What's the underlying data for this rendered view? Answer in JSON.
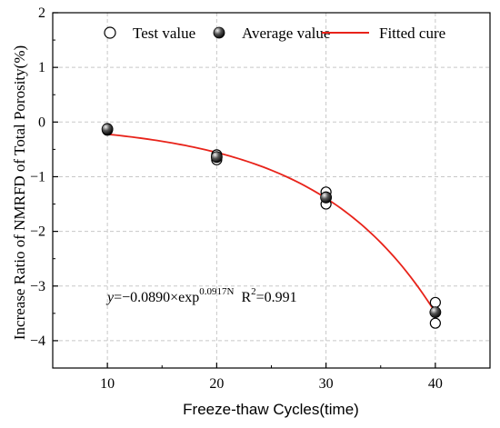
{
  "chart_data": {
    "type": "scatter",
    "xlabel": "Freeze-thaw Cycles(time)",
    "ylabel": "Increase Ratio of NMRFD of Total Porosity(%)",
    "xlim": [
      5,
      45
    ],
    "ylim": [
      -4.5,
      2
    ],
    "x_ticks": [
      "10",
      "20",
      "30",
      "40"
    ],
    "y_ticks": [
      "2",
      "1",
      "0",
      "−1",
      "−2",
      "−3",
      "−4"
    ],
    "grid": "dashed",
    "legend_position": "top",
    "series": [
      {
        "name": "Test value",
        "marker": "open-circle",
        "points": [
          {
            "x": 10,
            "y": -0.12
          },
          {
            "x": 10,
            "y": -0.15
          },
          {
            "x": 20,
            "y": -0.6
          },
          {
            "x": 20,
            "y": -0.65
          },
          {
            "x": 20,
            "y": -0.69
          },
          {
            "x": 30,
            "y": -1.28
          },
          {
            "x": 30,
            "y": -1.37
          },
          {
            "x": 30,
            "y": -1.5
          },
          {
            "x": 40,
            "y": -3.3
          },
          {
            "x": 40,
            "y": -3.48
          },
          {
            "x": 40,
            "y": -3.68
          }
        ]
      },
      {
        "name": "Average value",
        "marker": "filled-sphere",
        "points": [
          {
            "x": 10,
            "y": -0.13
          },
          {
            "x": 20,
            "y": -0.64
          },
          {
            "x": 30,
            "y": -1.38
          },
          {
            "x": 40,
            "y": -3.48
          }
        ]
      },
      {
        "name": "Fitted cure",
        "marker": "line",
        "color": "#e8231a",
        "x_range": [
          10,
          40
        ],
        "model": {
          "a": -0.089,
          "b": 0.0917
        }
      }
    ],
    "annotation": {
      "y_var": "y",
      "equation_text": "=−0.0890×exp",
      "exponent": "0.0917N",
      "r2_base": "R",
      "r2_exp": "2",
      "r2_value": "=0.991"
    }
  }
}
